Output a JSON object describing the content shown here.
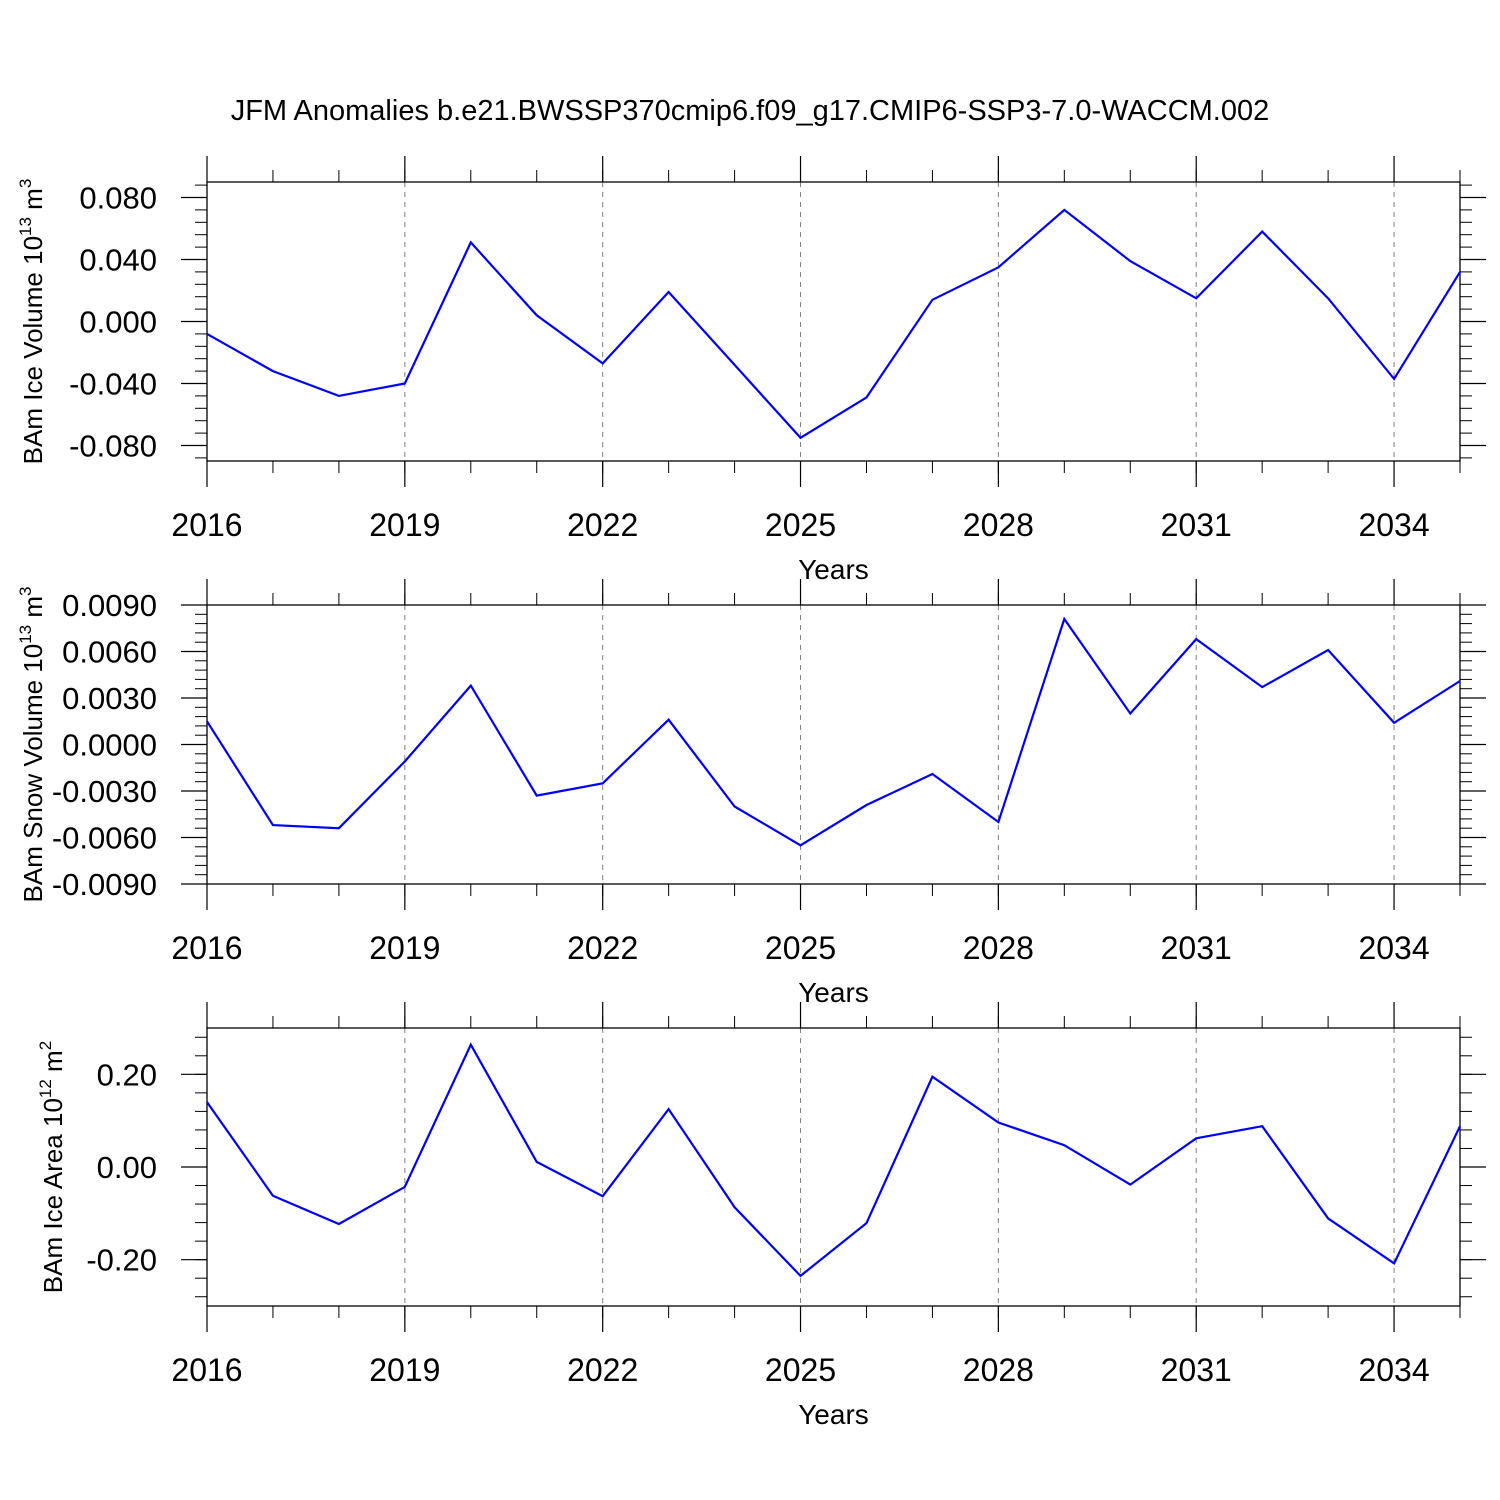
{
  "title": "JFM Anomalies b.e21.BWSSP370cmip6.f09_g17.CMIP6-SSP3-7.0-WACCM.002",
  "colors": {
    "line": "#0000ff",
    "axis": "#000000",
    "grid": "#808080"
  },
  "chart_data": [
    {
      "type": "line",
      "ylabel_prefix": "BAm Ice Volume 10",
      "ylabel_exp": "13",
      "ylabel_unit": " m",
      "ylabel_unit_exp": "3",
      "xlabel": "Years",
      "xlim": [
        2016,
        2035
      ],
      "ylim": [
        -0.09,
        0.09
      ],
      "xticks": [
        "2016",
        "2019",
        "2022",
        "2025",
        "2028",
        "2031",
        "2034"
      ],
      "yticks": [
        "0.080",
        "0.040",
        "0.000",
        "-0.040",
        "-0.080"
      ],
      "ytick_values": [
        0.08,
        0.04,
        0.0,
        -0.04,
        -0.08
      ],
      "x": [
        2016,
        2017,
        2018,
        2019,
        2020,
        2021,
        2022,
        2023,
        2024,
        2025,
        2026,
        2027,
        2028,
        2029,
        2030,
        2031,
        2032,
        2033,
        2034,
        2035
      ],
      "values": [
        -0.008,
        -0.032,
        -0.048,
        -0.04,
        0.051,
        0.004,
        -0.027,
        0.019,
        -0.028,
        -0.075,
        -0.049,
        0.014,
        0.035,
        0.072,
        0.039,
        0.015,
        0.058,
        0.015,
        -0.037,
        0.032
      ]
    },
    {
      "type": "line",
      "ylabel_prefix": "BAm Snow Volume 10",
      "ylabel_exp": "13",
      "ylabel_unit": " m",
      "ylabel_unit_exp": "3",
      "xlabel": "Years",
      "xlim": [
        2016,
        2035
      ],
      "ylim": [
        -0.009,
        0.009
      ],
      "xticks": [
        "2016",
        "2019",
        "2022",
        "2025",
        "2028",
        "2031",
        "2034"
      ],
      "yticks": [
        "0.0090",
        "0.0060",
        "0.0030",
        "0.0000",
        "-0.0030",
        "-0.0060",
        "-0.0090"
      ],
      "ytick_values": [
        0.009,
        0.006,
        0.003,
        0.0,
        -0.003,
        -0.006,
        -0.009
      ],
      "x": [
        2016,
        2017,
        2018,
        2019,
        2020,
        2021,
        2022,
        2023,
        2024,
        2025,
        2026,
        2027,
        2028,
        2029,
        2030,
        2031,
        2032,
        2033,
        2034,
        2035
      ],
      "values": [
        0.0015,
        -0.0052,
        -0.0054,
        -0.0011,
        0.0038,
        -0.0033,
        -0.0025,
        0.0016,
        -0.004,
        -0.0065,
        -0.0039,
        -0.0019,
        -0.005,
        0.0081,
        0.002,
        0.0068,
        0.0037,
        0.0061,
        0.0014,
        0.0041
      ]
    },
    {
      "type": "line",
      "ylabel_prefix": "BAm Ice Area 10",
      "ylabel_exp": "12",
      "ylabel_unit": " m",
      "ylabel_unit_exp": "2",
      "xlabel": "Years",
      "xlim": [
        2016,
        2035
      ],
      "ylim": [
        -0.3,
        0.3
      ],
      "xticks": [
        "2016",
        "2019",
        "2022",
        "2025",
        "2028",
        "2031",
        "2034"
      ],
      "yticks": [
        "0.20",
        "0.00",
        "-0.20"
      ],
      "ytick_values": [
        0.2,
        0.0,
        -0.2
      ],
      "x": [
        2016,
        2017,
        2018,
        2019,
        2020,
        2021,
        2022,
        2023,
        2024,
        2025,
        2026,
        2027,
        2028,
        2029,
        2030,
        2031,
        2032,
        2033,
        2034,
        2035
      ],
      "values": [
        0.14,
        -0.062,
        -0.123,
        -0.043,
        0.264,
        0.011,
        -0.063,
        0.125,
        -0.087,
        -0.235,
        -0.121,
        0.195,
        0.096,
        0.047,
        -0.038,
        0.062,
        0.088,
        -0.111,
        -0.208,
        0.088
      ]
    }
  ]
}
